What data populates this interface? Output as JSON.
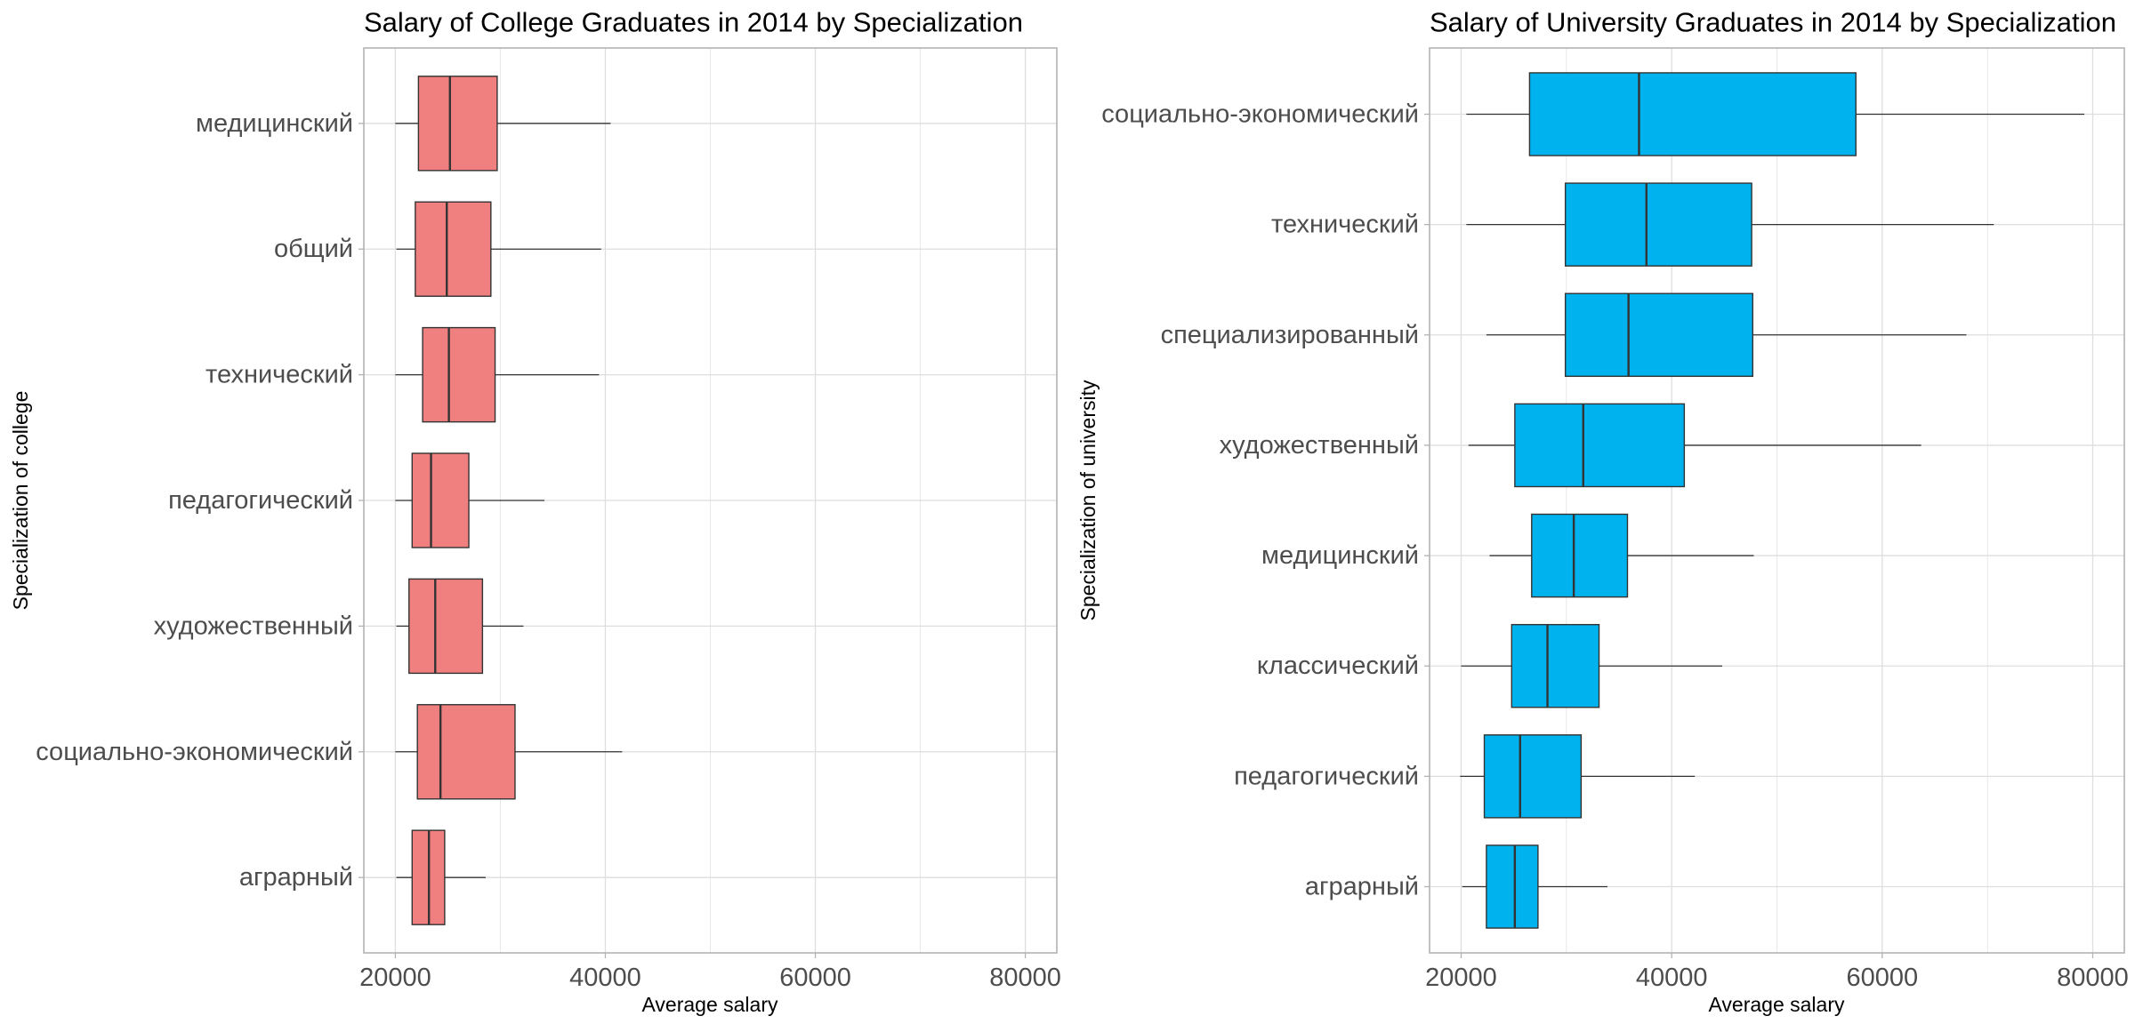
{
  "chart_data": [
    {
      "type": "boxplot",
      "orientation": "horizontal",
      "title": "Salary of College Graduates in 2014 by Specialization",
      "xlabel": "Average salary",
      "ylabel": "Specialization of college",
      "xlim": [
        17000,
        83000
      ],
      "xticks": [
        20000,
        40000,
        60000,
        80000
      ],
      "grid": true,
      "fill": "#F08080",
      "categories": [
        "медицинский",
        "общий",
        "технический",
        "педагогический",
        "художественный",
        "социально-экономический",
        "аграрный"
      ],
      "stats": {
        "min": [
          20000,
          20100,
          20000,
          20000,
          20100,
          20000,
          20100
        ],
        "q1": [
          22200,
          21900,
          22600,
          21600,
          21300,
          22100,
          21600
        ],
        "median": [
          25200,
          24900,
          25100,
          23400,
          23800,
          24300,
          23200
        ],
        "q3": [
          29700,
          29100,
          29500,
          27000,
          28300,
          31400,
          24700
        ],
        "max": [
          40500,
          39600,
          39400,
          34200,
          32200,
          41600,
          28600
        ]
      }
    },
    {
      "type": "boxplot",
      "orientation": "horizontal",
      "title": "Salary of University Graduates in 2014 by Specialization",
      "xlabel": "Average salary",
      "ylabel": "Specialization of university",
      "xlim": [
        17000,
        83000
      ],
      "xticks": [
        20000,
        40000,
        60000,
        80000
      ],
      "grid": true,
      "fill": "#00B2EE",
      "categories": [
        "социально-экономический",
        "технический",
        "специализированный",
        "художественный",
        "медицинский",
        "классический",
        "педагогический",
        "аграрный"
      ],
      "stats": {
        "min": [
          20500,
          20500,
          22400,
          20700,
          22700,
          20000,
          19900,
          20100
        ],
        "q1": [
          26500,
          29900,
          29900,
          25100,
          26700,
          24800,
          22200,
          22400
        ],
        "median": [
          36900,
          37600,
          35900,
          31600,
          30700,
          28200,
          25600,
          25100
        ],
        "q3": [
          57500,
          47600,
          47700,
          41200,
          35800,
          33100,
          31400,
          27300
        ],
        "max": [
          79200,
          70600,
          68000,
          63700,
          47800,
          44800,
          42200,
          33900
        ]
      }
    }
  ]
}
